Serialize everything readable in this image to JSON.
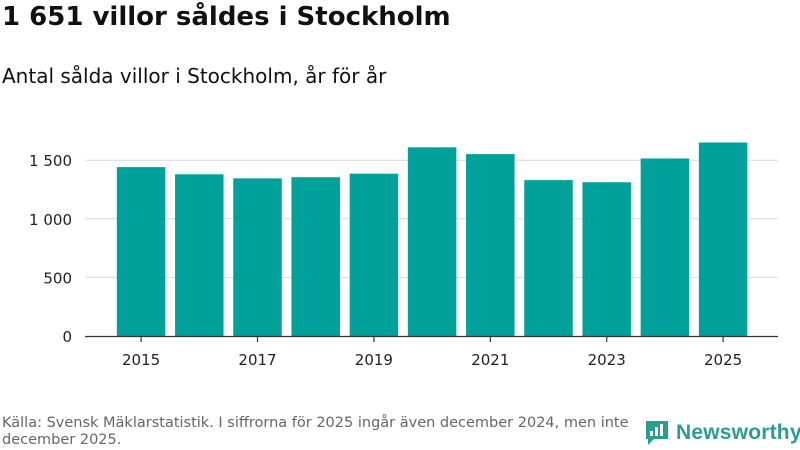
{
  "chart_data": {
    "type": "bar",
    "title": "1 651 villor såldes i Stockholm",
    "subtitle": "Antal sålda villor i Stockholm, år för år",
    "categories": [
      "2015",
      "2016",
      "2017",
      "2018",
      "2019",
      "2020",
      "2021",
      "2022",
      "2023",
      "2024",
      "2025"
    ],
    "values": [
      1441,
      1380,
      1345,
      1355,
      1385,
      1610,
      1552,
      1330,
      1312,
      1515,
      1651
    ],
    "x_tick_labels": [
      "2015",
      "2017",
      "2019",
      "2021",
      "2023",
      "2025"
    ],
    "y_ticks": [
      0,
      500,
      1000,
      1500
    ],
    "y_tick_labels": [
      "0",
      "500",
      "1 000",
      "1 500"
    ],
    "ylim": [
      0,
      1700
    ],
    "xlabel": "",
    "ylabel": "",
    "grid": true,
    "bar_color": "#00a19a"
  },
  "footer": {
    "source": "Källa: Svensk Mäklarstatistik. I siffrorna för 2025 ingår även december 2024, men inte december 2025."
  },
  "brand": {
    "name": "Newsworthy",
    "icon": "newsworthy-logo-icon",
    "color": "#2a9d8f"
  }
}
